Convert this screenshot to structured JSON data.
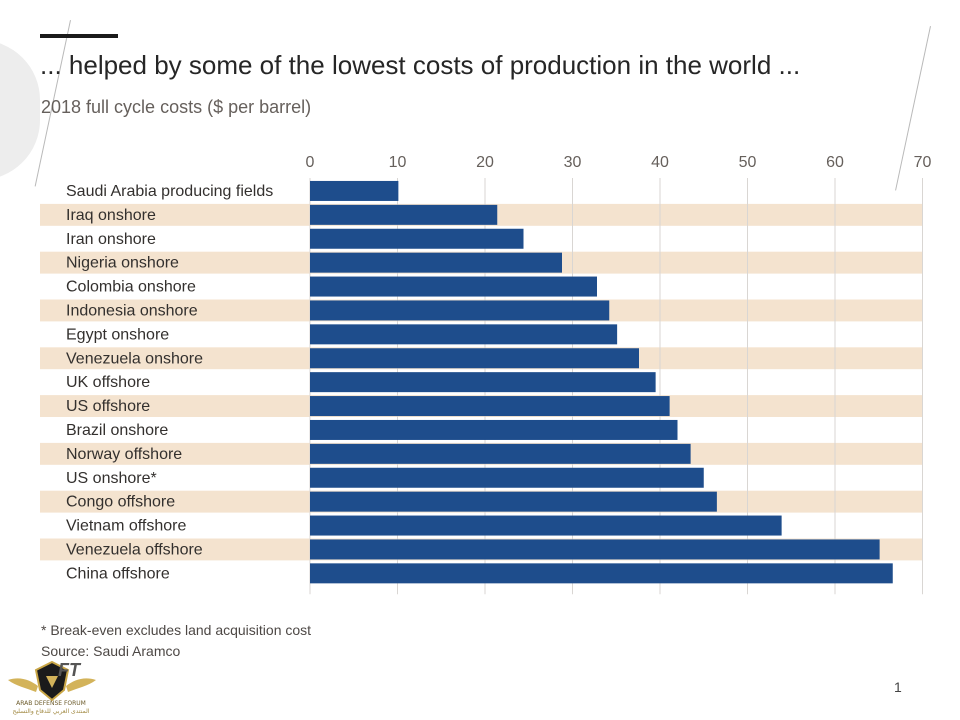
{
  "header": {
    "title": "... helped by some of the lowest costs of production in the world ...",
    "subtitle": "2018 full cycle costs ($ per barrel)"
  },
  "chart_data": {
    "type": "bar",
    "orientation": "horizontal",
    "title": "... helped by some of the lowest costs of production in the world ...",
    "subtitle": "2018 full cycle costs ($ per barrel)",
    "xlabel": "",
    "ylabel": "",
    "xlim": [
      0,
      70
    ],
    "ticks": [
      0,
      10,
      20,
      30,
      40,
      50,
      60,
      70
    ],
    "categories": [
      "Saudi Arabia producing fields",
      "Iraq onshore",
      "Iran onshore",
      "Nigeria onshore",
      "Colombia onshore",
      "Indonesia onshore",
      "Egypt onshore",
      "Venezuela onshore",
      "UK offshore",
      "US offshore",
      "Brazil onshore",
      "Norway offshore",
      "US onshore*",
      "Congo offshore",
      "Vietnam offshore",
      "Venezuela offshore",
      "China offshore"
    ],
    "values": [
      10.1,
      21.4,
      24.4,
      28.8,
      32.8,
      34.2,
      35.1,
      37.6,
      39.5,
      41.1,
      42.0,
      43.5,
      45.0,
      46.5,
      53.9,
      65.1,
      66.6
    ],
    "bar_color": "#1e4d8c",
    "band_color": "#f4e3cf",
    "grid": true
  },
  "footer": {
    "footnote": "* Break-even excludes land acquisition cost",
    "source": "Source: Saudi Aramco",
    "page_number": "1"
  },
  "logo": {
    "text": "FT",
    "caption_en": "ARAB DEFENSE FORUM",
    "caption_ar": "المنتدى العربي للدفاع والتسليح"
  }
}
